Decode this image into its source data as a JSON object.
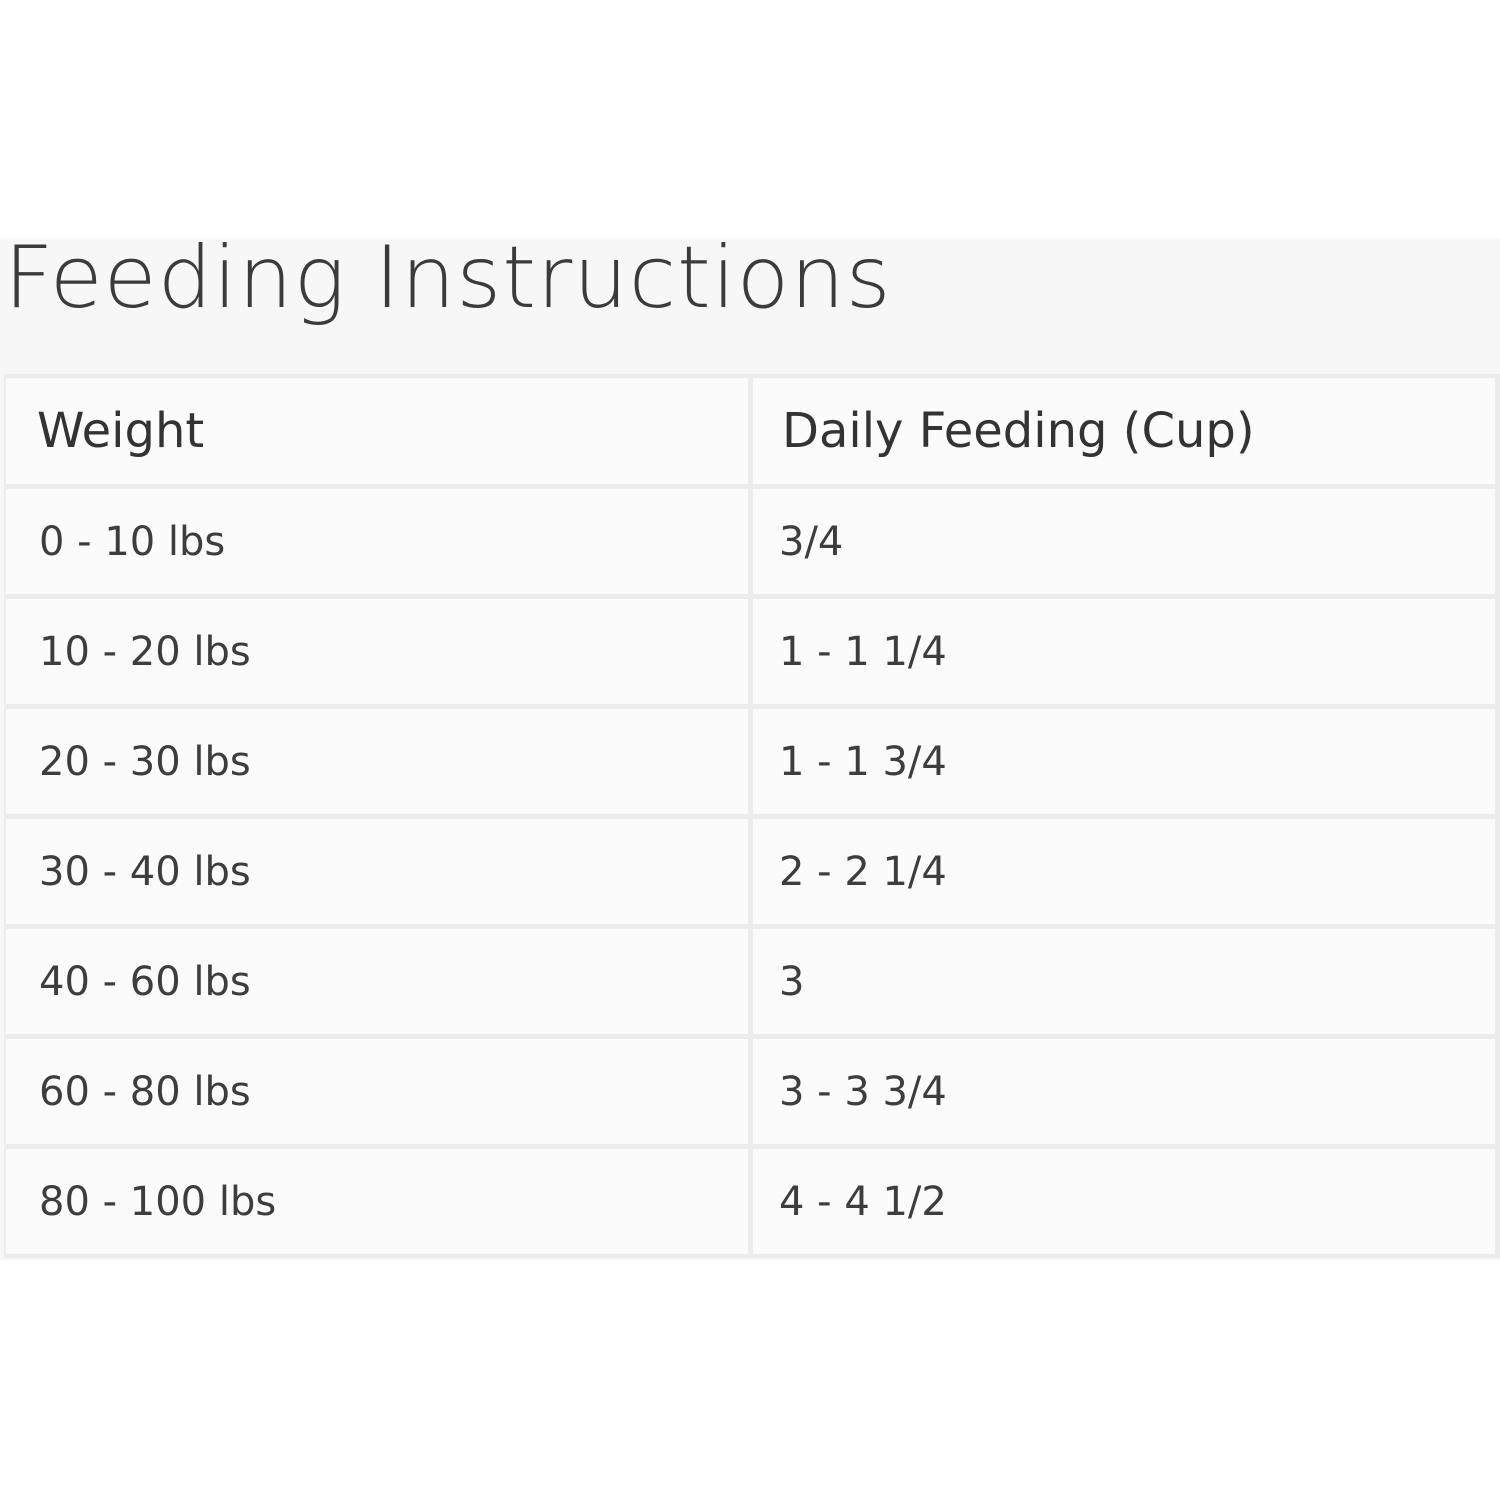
{
  "title": "Feeding Instructions",
  "table": {
    "headers": [
      "Weight",
      "Daily Feeding (Cup)"
    ],
    "rows": [
      [
        "0 - 10 lbs",
        "3/4"
      ],
      [
        "10 - 20 lbs",
        "1 - 1 1/4"
      ],
      [
        "20 - 30 lbs",
        "1 - 1 3/4"
      ],
      [
        "30 - 40 lbs",
        "2 - 2 1/4"
      ],
      [
        "40 - 60 lbs",
        "3"
      ],
      [
        "60 - 80 lbs",
        "3 - 3 3/4"
      ],
      [
        "80 - 100 lbs",
        "4 - 4 1/2"
      ]
    ]
  }
}
